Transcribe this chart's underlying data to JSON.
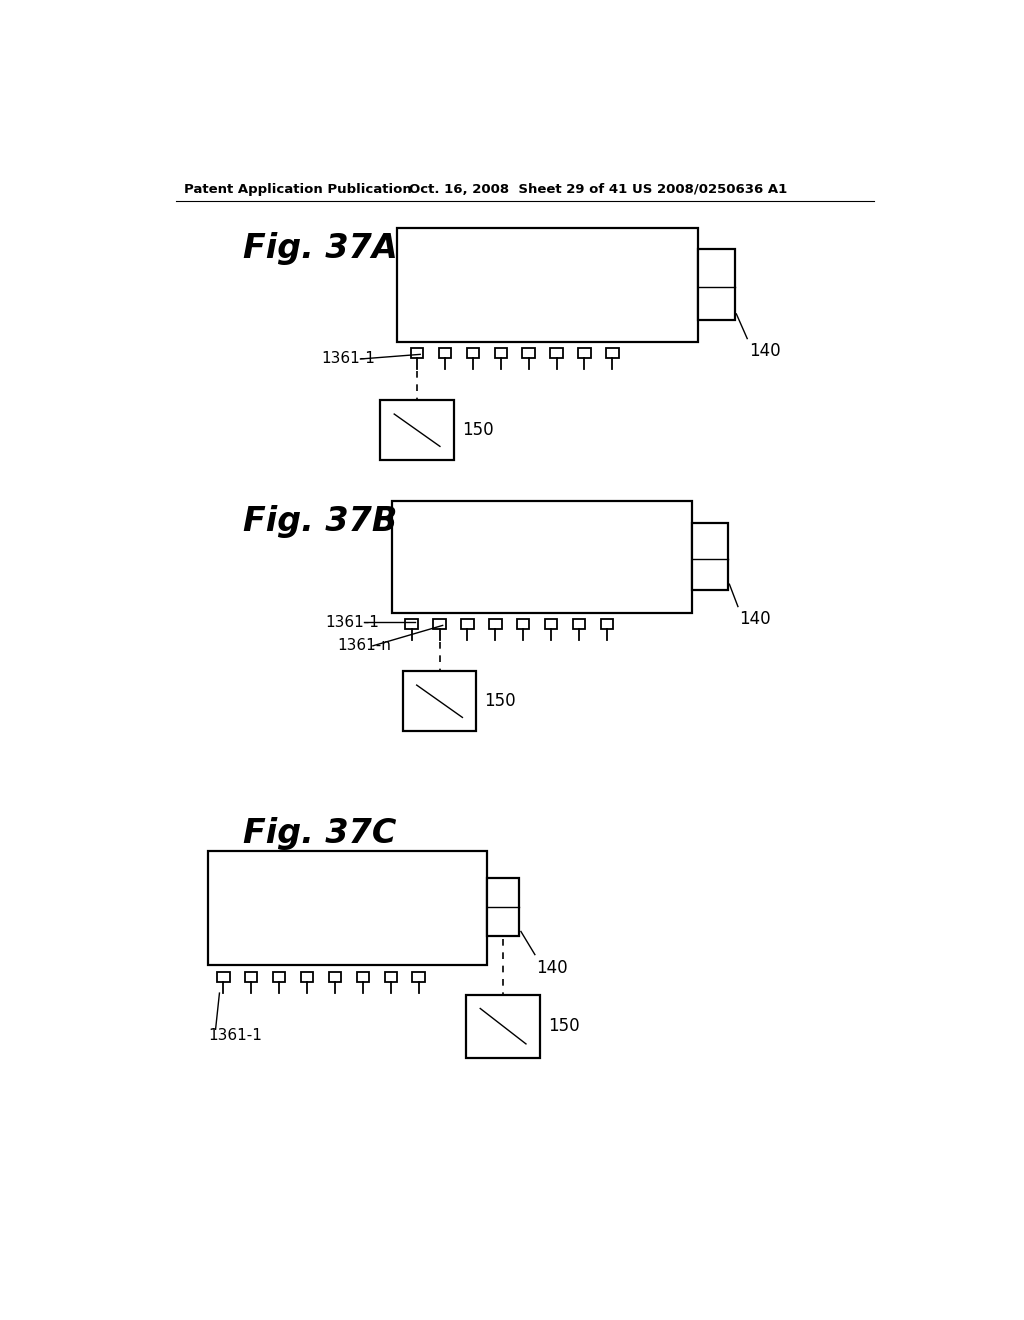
{
  "bg_color": "#ffffff",
  "header_text": "Patent Application Publication",
  "header_date": "Oct. 16, 2008  Sheet 29 of 41",
  "header_patent": "US 2008/0250636 A1",
  "fig_labels": [
    "Fig. 37A",
    "Fig. 37B",
    "Fig. 37C"
  ],
  "component_label": "140",
  "board_label": "150",
  "pins_label_1": "1361-1",
  "pins_label_n": "1361-n",
  "num_pins": 8,
  "lw_main": 1.6,
  "lw_thin": 1.0
}
